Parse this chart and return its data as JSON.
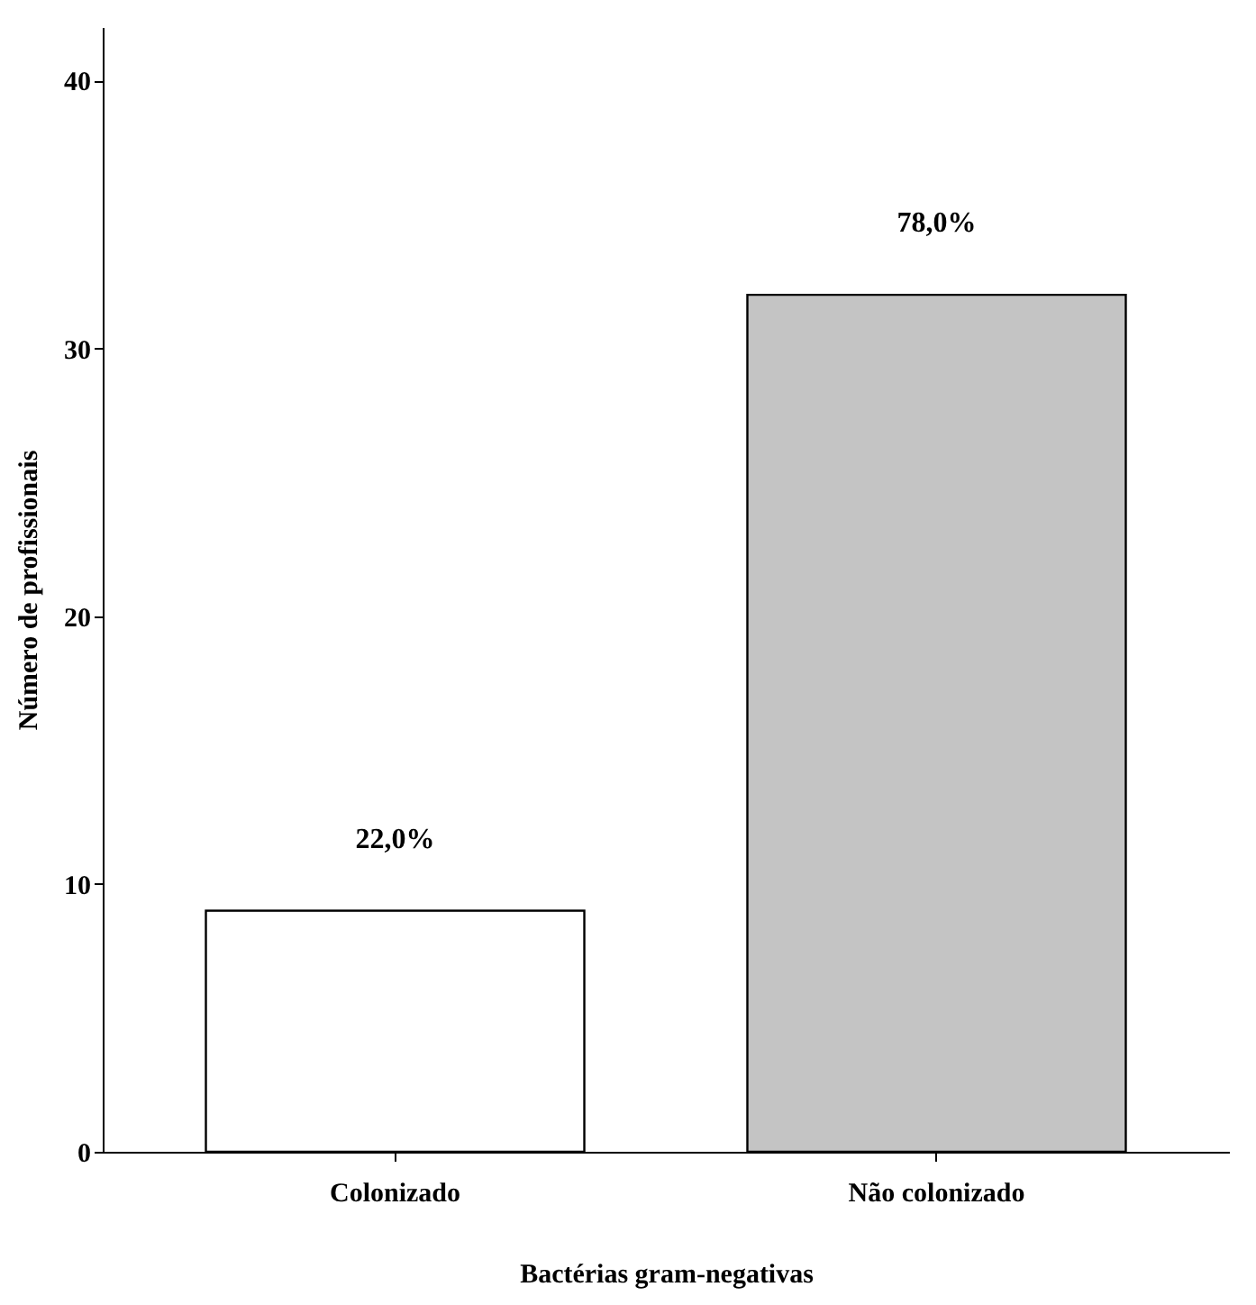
{
  "chart_data": {
    "type": "bar",
    "xlabel": "Bactérias gram-negativas",
    "ylabel": "Número de profissionais",
    "categories": [
      "Colonizado",
      "Não colonizado"
    ],
    "values": [
      9,
      32
    ],
    "colors": [
      "#ffffff",
      "#c4c4c4"
    ],
    "annotations": [
      {
        "text": "22,0%",
        "x": "Colonizado",
        "y": 9
      },
      {
        "text": "78,0%",
        "x": "Não colonizado",
        "y": 32
      }
    ],
    "ylim": [
      0,
      42
    ],
    "yticks": [
      0,
      10,
      20,
      30,
      40
    ],
    "grid": false
  }
}
